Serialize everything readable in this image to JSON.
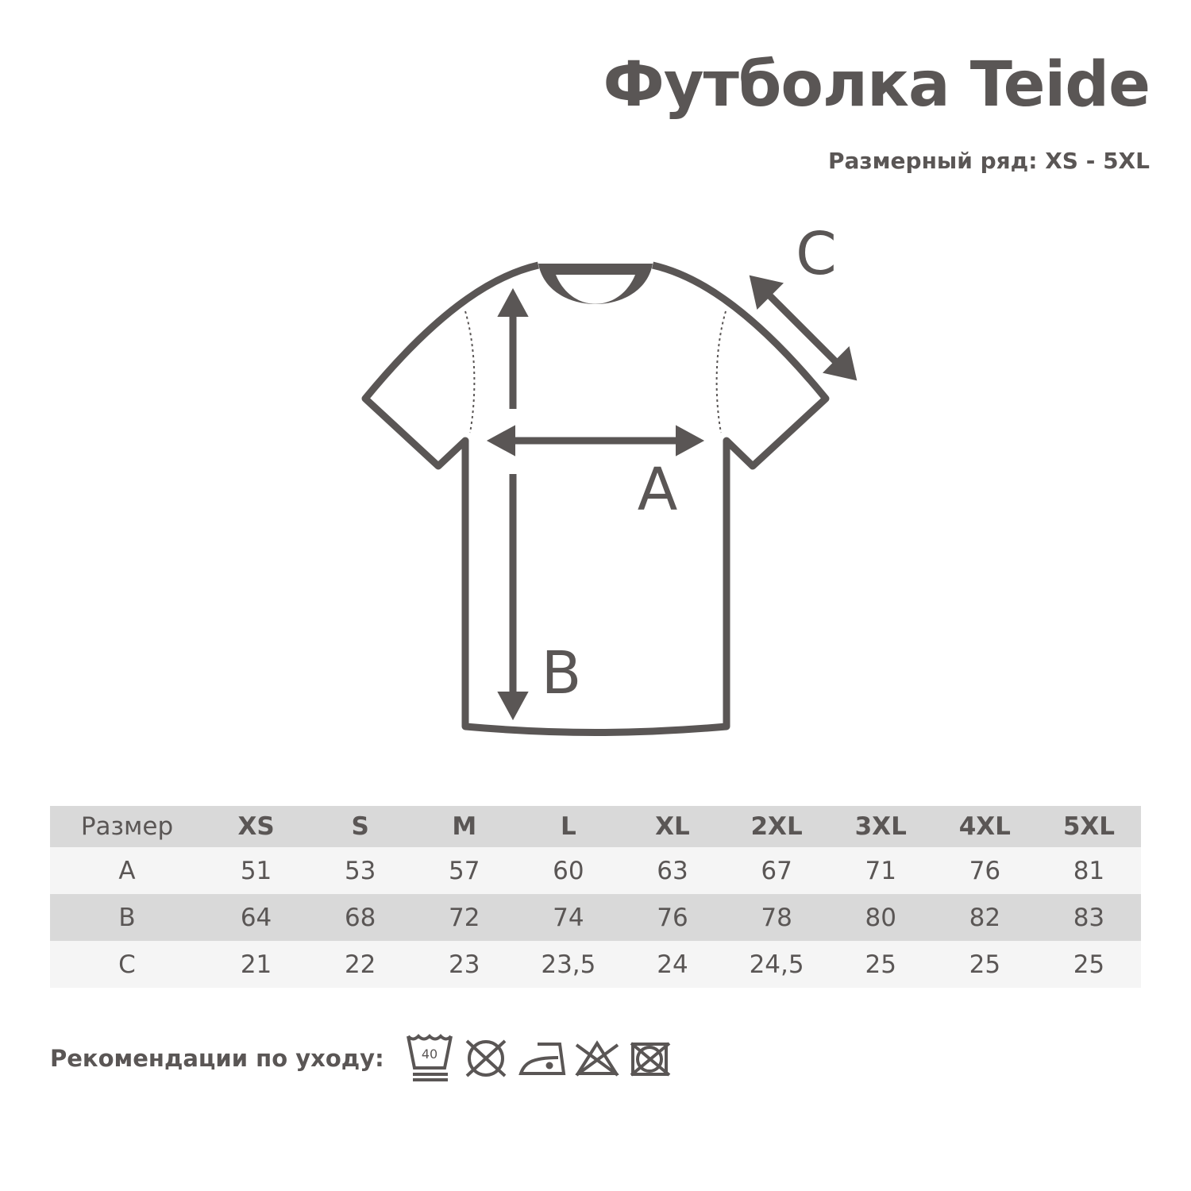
{
  "title": "Футболка Teide",
  "subtitle": "Размерный ряд: XS - 5XL",
  "diagram": {
    "labels": {
      "a": "A",
      "b": "B",
      "c": "C"
    }
  },
  "table": {
    "header": [
      "Размер",
      "XS",
      "S",
      "M",
      "L",
      "XL",
      "2XL",
      "3XL",
      "4XL",
      "5XL"
    ],
    "rows": [
      [
        "A",
        "51",
        "53",
        "57",
        "60",
        "63",
        "67",
        "71",
        "76",
        "81"
      ],
      [
        "B",
        "64",
        "68",
        "72",
        "74",
        "76",
        "78",
        "80",
        "82",
        "83"
      ],
      [
        "C",
        "21",
        "22",
        "23",
        "23,5",
        "24",
        "24,5",
        "25",
        "25",
        "25"
      ]
    ]
  },
  "care": {
    "label": "Рекомендации по уходу:",
    "wash_temp": "40",
    "icons": [
      "wash-40-gentle-icon",
      "no-tumble-dry-icon",
      "iron-low-icon",
      "no-bleach-icon",
      "no-dry-clean-icon"
    ]
  },
  "colors": {
    "ink": "#5a5655",
    "header_bg": "#d9d9d9",
    "row_light": "#f5f5f5",
    "row_dark": "#d9d9d9"
  }
}
